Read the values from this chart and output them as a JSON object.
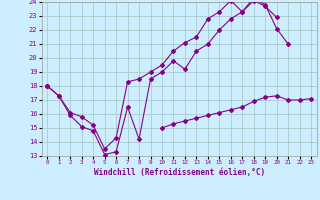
{
  "xlabel": "Windchill (Refroidissement éolien,°C)",
  "background_color": "#cceeff",
  "grid_color": "#aacccc",
  "line_color": "#880088",
  "xlim": [
    -0.5,
    23.5
  ],
  "ylim": [
    13,
    24
  ],
  "xticks": [
    0,
    1,
    2,
    3,
    4,
    5,
    6,
    7,
    8,
    9,
    10,
    11,
    12,
    13,
    14,
    15,
    16,
    17,
    18,
    19,
    20,
    21,
    22,
    23
  ],
  "yticks": [
    13,
    14,
    15,
    16,
    17,
    18,
    19,
    20,
    21,
    22,
    23,
    24
  ],
  "curve1_x": [
    0,
    1,
    2,
    3,
    4,
    5,
    6,
    7,
    8,
    9,
    10,
    11,
    12,
    13,
    14,
    15,
    16,
    17,
    18,
    19,
    20
  ],
  "curve1_y": [
    18.0,
    17.3,
    15.9,
    15.1,
    14.8,
    13.1,
    13.3,
    16.5,
    14.2,
    18.5,
    19.0,
    19.8,
    19.2,
    20.5,
    21.0,
    22.0,
    22.8,
    23.3,
    24.1,
    23.7,
    22.9
  ],
  "curve2_x": [
    0,
    1,
    2,
    3,
    4,
    5,
    6,
    7,
    8,
    9,
    10,
    11,
    12,
    13,
    14,
    15,
    16,
    17,
    18,
    19,
    20,
    21
  ],
  "curve2_y": [
    18.0,
    17.3,
    16.1,
    15.8,
    15.2,
    13.5,
    14.3,
    18.3,
    18.5,
    19.0,
    19.5,
    20.5,
    21.1,
    21.5,
    22.8,
    23.3,
    24.1,
    23.3,
    24.3,
    23.8,
    22.1,
    21.0
  ],
  "curve3_x": [
    10,
    11,
    12,
    13,
    14,
    15,
    16,
    17,
    18,
    19,
    20,
    21,
    22,
    23
  ],
  "curve3_y": [
    15.0,
    15.3,
    15.5,
    15.7,
    15.9,
    16.1,
    16.3,
    16.5,
    16.9,
    17.2,
    17.3,
    17.0,
    17.0,
    17.1
  ],
  "curve3_start_x": [
    0
  ],
  "curve3_start_y": [
    18.0
  ]
}
